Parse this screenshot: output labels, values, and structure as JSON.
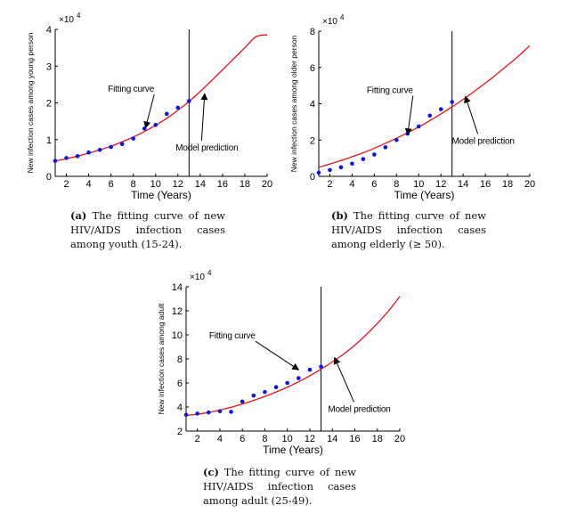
{
  "chart_data": [
    {
      "type": "line",
      "panel_label": "(a)",
      "caption_lines": [
        "The fitting curve of new",
        "HIV/AIDS infection cases",
        "among youth (15-24)."
      ],
      "xlabel": "Time (Years)",
      "ylabel": "New infection cases among young person",
      "y_multiplier": "×10",
      "y_exponent": "4",
      "xlim": [
        1,
        20
      ],
      "ylim": [
        0,
        4
      ],
      "x_ticks": [
        2,
        4,
        6,
        8,
        10,
        12,
        14,
        16,
        18,
        20
      ],
      "y_ticks": [
        0,
        1,
        2,
        3,
        4
      ],
      "vline_x": 13,
      "data_points": {
        "x": [
          1,
          2,
          3,
          4,
          5,
          6,
          7,
          8,
          9,
          10,
          11,
          12,
          13
        ],
        "y": [
          0.42,
          0.5,
          0.55,
          0.65,
          0.72,
          0.8,
          0.88,
          1.03,
          1.3,
          1.4,
          1.7,
          1.87,
          2.05
        ]
      },
      "fit_curve": {
        "x": [
          1,
          2,
          3,
          4,
          5,
          6,
          7,
          8,
          9,
          10,
          11,
          12,
          13,
          14,
          15,
          16,
          17,
          18,
          19,
          20
        ],
        "y": [
          0.42,
          0.48,
          0.55,
          0.63,
          0.72,
          0.82,
          0.94,
          1.07,
          1.22,
          1.39,
          1.58,
          1.8,
          2.04,
          2.31,
          2.6,
          2.9,
          3.2,
          3.5,
          3.8,
          3.85
        ]
      },
      "annotations": [
        {
          "text": "Fitting curve",
          "tx": 7.8,
          "ty": 2.3,
          "ax": 9.1,
          "ay": 1.32
        },
        {
          "text": "Model prediction",
          "tx": 14.6,
          "ty": 0.7,
          "ax": 14.4,
          "ay": 2.25
        }
      ]
    },
    {
      "type": "line",
      "panel_label": "(b)",
      "caption_lines": [
        "The fitting curve of new",
        "HIV/AIDS infection cases",
        "among elderly (≥ 50)."
      ],
      "xlabel": "Time (Years)",
      "ylabel": "New infection cases among older person",
      "y_multiplier": "×10",
      "y_exponent": "4",
      "xlim": [
        1,
        20
      ],
      "ylim": [
        0,
        8
      ],
      "x_ticks": [
        2,
        4,
        6,
        8,
        10,
        12,
        14,
        16,
        18,
        20
      ],
      "y_ticks": [
        0,
        2,
        4,
        6,
        8
      ],
      "vline_x": 13,
      "data_points": {
        "x": [
          1,
          2,
          3,
          4,
          5,
          6,
          7,
          8,
          9,
          10,
          11,
          12,
          13
        ],
        "y": [
          0.2,
          0.35,
          0.5,
          0.7,
          0.95,
          1.2,
          1.6,
          2.0,
          2.35,
          2.75,
          3.35,
          3.7,
          4.1
        ]
      },
      "fit_curve": {
        "x": [
          1,
          2,
          3,
          4,
          5,
          6,
          7,
          8,
          9,
          10,
          11,
          12,
          13,
          14,
          15,
          16,
          17,
          18,
          19,
          20
        ],
        "y": [
          0.5,
          0.68,
          0.87,
          1.08,
          1.3,
          1.55,
          1.82,
          2.1,
          2.4,
          2.72,
          3.07,
          3.44,
          3.83,
          4.24,
          4.68,
          5.14,
          5.62,
          6.12,
          6.64,
          7.2
        ]
      },
      "annotations": [
        {
          "text": "Fitting curve",
          "tx": 7.4,
          "ty": 4.6,
          "ax": 9.0,
          "ay": 2.3
        },
        {
          "text": "Model prediction",
          "tx": 15.8,
          "ty": 1.8,
          "ax": 14.2,
          "ay": 4.4
        }
      ]
    },
    {
      "type": "line",
      "panel_label": "(c)",
      "caption_lines": [
        "The fitting curve of new",
        "HIV/AIDS infection cases",
        "among adult (25-49)."
      ],
      "xlabel": "Time (Years)",
      "ylabel": "New infection cases among adult",
      "y_multiplier": "×10",
      "y_exponent": "4",
      "xlim": [
        1,
        20
      ],
      "ylim": [
        2,
        14
      ],
      "x_ticks": [
        2,
        4,
        6,
        8,
        10,
        12,
        14,
        16,
        18,
        20
      ],
      "y_ticks": [
        2,
        4,
        6,
        8,
        10,
        12,
        14
      ],
      "vline_x": 13,
      "data_points": {
        "x": [
          1,
          2,
          3,
          4,
          5,
          6,
          7,
          8,
          9,
          10,
          11,
          12,
          13
        ],
        "y": [
          3.35,
          3.45,
          3.55,
          3.65,
          3.6,
          4.45,
          4.95,
          5.25,
          5.65,
          6.0,
          6.4,
          7.1,
          7.35
        ]
      },
      "fit_curve": {
        "x": [
          1,
          2,
          3,
          4,
          5,
          6,
          7,
          8,
          9,
          10,
          11,
          12,
          13,
          14,
          15,
          16,
          17,
          18,
          19,
          20
        ],
        "y": [
          3.3,
          3.4,
          3.55,
          3.75,
          3.98,
          4.25,
          4.55,
          4.88,
          5.25,
          5.65,
          6.1,
          6.6,
          7.15,
          7.75,
          8.4,
          9.15,
          10.0,
          10.95,
          12.0,
          13.2
        ]
      },
      "annotations": [
        {
          "text": "Fitting curve",
          "tx": 5.1,
          "ty": 9.7,
          "ax": 11.0,
          "ay": 7.1
        },
        {
          "text": "Model prediction",
          "tx": 16.4,
          "ty": 3.6,
          "ax": 14.2,
          "ay": 8.1
        }
      ]
    }
  ],
  "colors": {
    "curve": "#e3141c",
    "points": "#0b14e6",
    "axis": "#000000",
    "vline": "#000000"
  }
}
